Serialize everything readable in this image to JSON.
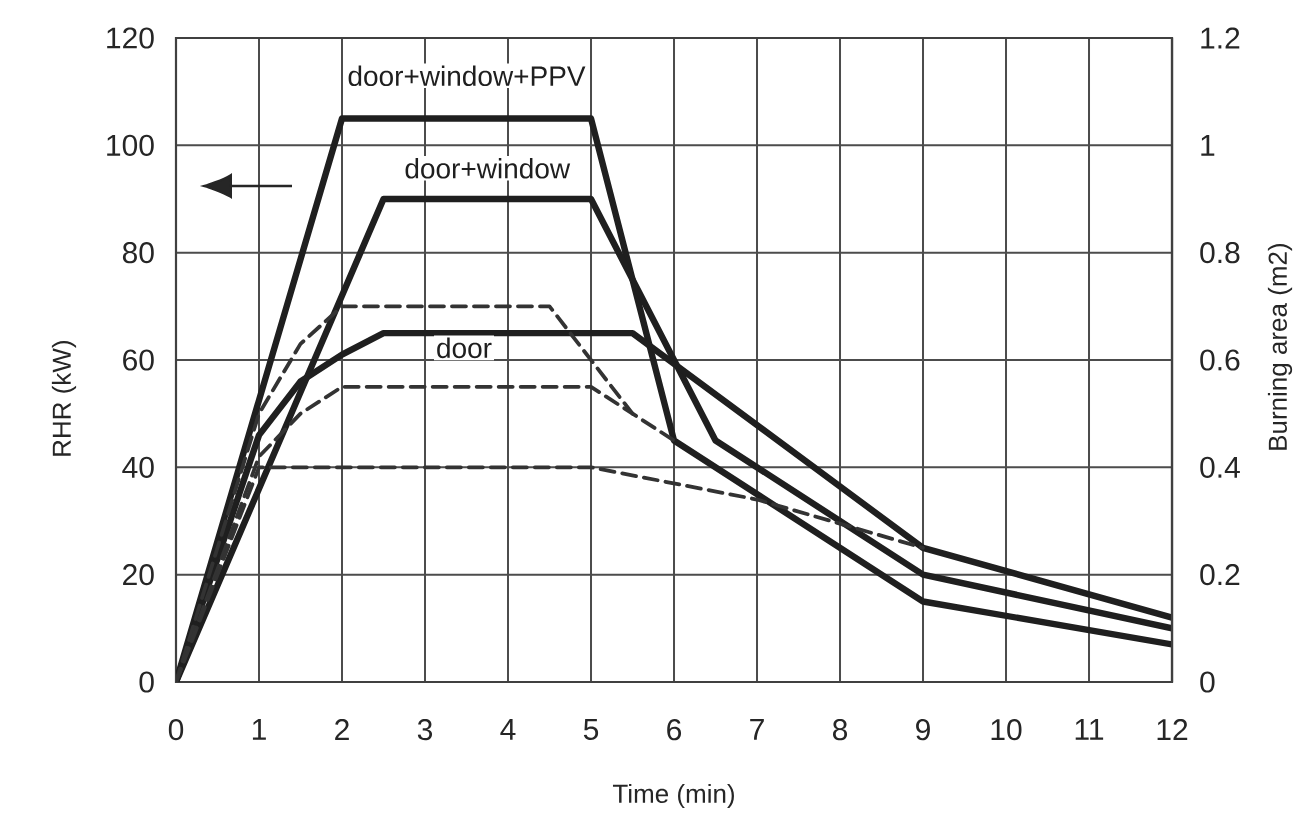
{
  "chart_data": {
    "type": "line",
    "xlabel": "Time (min)",
    "ylabel": "RHR (kW)",
    "y2label": "Burning area (m2)",
    "xlim": [
      0,
      12
    ],
    "xticks": [
      0,
      1,
      2,
      3,
      4,
      5,
      6,
      7,
      8,
      9,
      10,
      11,
      12
    ],
    "ylim": [
      0,
      120
    ],
    "yticks": [
      0,
      20,
      40,
      60,
      80,
      100,
      120
    ],
    "y2lim": [
      0,
      1.2
    ],
    "y2ticks": [
      0,
      0.2,
      0.4,
      0.6,
      0.8,
      1,
      1.2
    ],
    "grid": true,
    "marker": "none",
    "series": [
      {
        "name": "door+window+PPV",
        "color": "#1f1f1f",
        "line_style": "solid",
        "x": [
          0,
          2,
          5,
          6,
          9,
          12
        ],
        "values": [
          0,
          105,
          105,
          45,
          15,
          7
        ]
      },
      {
        "name": "door+window",
        "color": "#1f1f1f",
        "line_style": "solid",
        "x": [
          0,
          2.5,
          5,
          6.5,
          9,
          12
        ],
        "values": [
          0,
          90,
          90,
          45,
          20,
          10
        ]
      },
      {
        "name": "door",
        "color": "#1f1f1f",
        "line_style": "solid",
        "x": [
          0,
          1,
          1.5,
          2,
          2.5,
          5.5,
          9,
          12
        ],
        "values": [
          0,
          46,
          56,
          61,
          65,
          65,
          25,
          12
        ]
      },
      {
        "color": "#333333",
        "line_style": "dashed",
        "axis": "y2",
        "x": [
          0,
          1,
          1.5,
          2,
          4.5,
          5.5
        ],
        "values": [
          0,
          0.5,
          0.63,
          0.7,
          0.7,
          0.5
        ]
      },
      {
        "color": "#333333",
        "line_style": "dashed",
        "axis": "y2",
        "x": [
          0,
          1,
          1.5,
          2,
          5,
          6
        ],
        "values": [
          0,
          0.42,
          0.5,
          0.55,
          0.55,
          0.45
        ]
      },
      {
        "color": "#333333",
        "line_style": "dashed",
        "axis": "y2",
        "x": [
          0,
          1,
          5,
          6,
          7,
          9
        ],
        "values": [
          0,
          0.4,
          0.4,
          0.37,
          0.34,
          0.25
        ]
      }
    ]
  }
}
